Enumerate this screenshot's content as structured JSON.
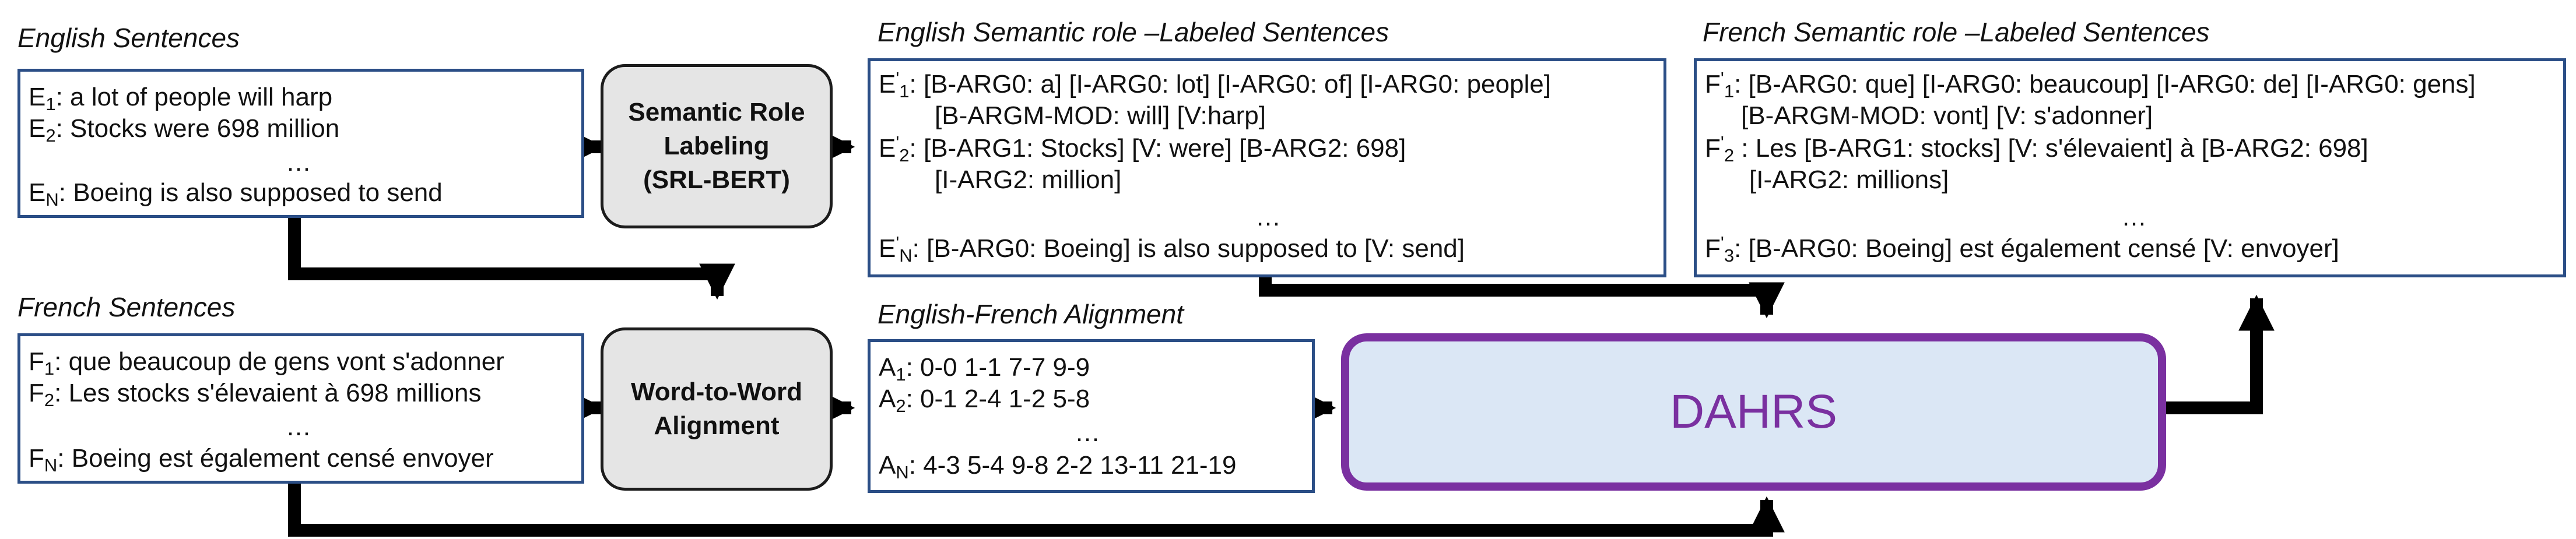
{
  "titles": {
    "english_sentences": "English Sentences",
    "french_sentences": "French Sentences",
    "english_srl": "English Semantic role –Labeled Sentences",
    "french_srl": "French Semantic role –Labeled Sentences",
    "alignment": "English-French Alignment"
  },
  "english_sentences": {
    "e1": {
      "label": "E",
      "sub": "1",
      "text": ": a lot of people will harp"
    },
    "e2": {
      "label": "E",
      "sub": "2",
      "text": ": Stocks were 698 million"
    },
    "ellipsis": "…",
    "en": {
      "label": "E",
      "sub": "N",
      "text": ": Boeing is also supposed to send"
    }
  },
  "french_sentences": {
    "f1": {
      "label": "F",
      "sub": "1",
      "text": ": que beaucoup de gens vont s'adonner"
    },
    "f2": {
      "label": "F",
      "sub": "2",
      "text": ": Les stocks s'élevaient à 698 millions"
    },
    "ellipsis": "…",
    "fn": {
      "label": "F",
      "sub": "N",
      "text": ": Boeing est également censé envoyer"
    }
  },
  "srl_block": {
    "line1": "Semantic Role",
    "line2": "Labeling",
    "line3": "(SRL-BERT)"
  },
  "w2w_block": {
    "line1": "Word-to-Word",
    "line2": "Alignment"
  },
  "dahrs_label": "DAHRS",
  "english_srl": {
    "e1": {
      "label": "E",
      "prime": "'",
      "sub": "1",
      "line1": ": [B-ARG0: a] [I-ARG0: lot] [I-ARG0: of] [I-ARG0: people]",
      "line2": "[B-ARGM-MOD: will] [V:harp]"
    },
    "e2": {
      "label": "E",
      "prime": "'",
      "sub": "2",
      "line1": ": [B-ARG1: Stocks] [V: were] [B-ARG2: 698]",
      "line2": "[I-ARG2: million]"
    },
    "ellipsis": "…",
    "en": {
      "label": "E",
      "prime": "'",
      "sub": "N",
      "line1": ": [B-ARG0: Boeing] is also supposed to [V: send]"
    }
  },
  "french_srl": {
    "f1": {
      "label": "F",
      "prime": "'",
      "sub": "1",
      "line1": ": [B-ARG0: que] [I-ARG0: beaucoup] [I-ARG0: de] [I-ARG0: gens]",
      "line2": "[B-ARGM-MOD: vont] [V: s'adonner]"
    },
    "f2": {
      "label": "F",
      "prime": "'",
      "sub": "2",
      "line1": " : Les [B-ARG1: stocks] [V: s'élevaient] à [B-ARG2: 698]",
      "line2": "[I-ARG2: millions]"
    },
    "ellipsis": "…",
    "f3": {
      "label": "F",
      "prime": "'",
      "sub": "3",
      "line1": ": [B-ARG0: Boeing] est également censé [V: envoyer]"
    }
  },
  "alignment": {
    "a1": {
      "label": "A",
      "sub": "1",
      "text": ": 0-0 1-1 7-7 9-9"
    },
    "a2": {
      "label": "A",
      "sub": "2",
      "text": ": 0-1 2-4 1-2 5-8"
    },
    "ellipsis": "…",
    "an": {
      "label": "A",
      "sub": "N",
      "text": ": 4-3 5-4 9-8 2-2 13-11 21-19"
    }
  }
}
